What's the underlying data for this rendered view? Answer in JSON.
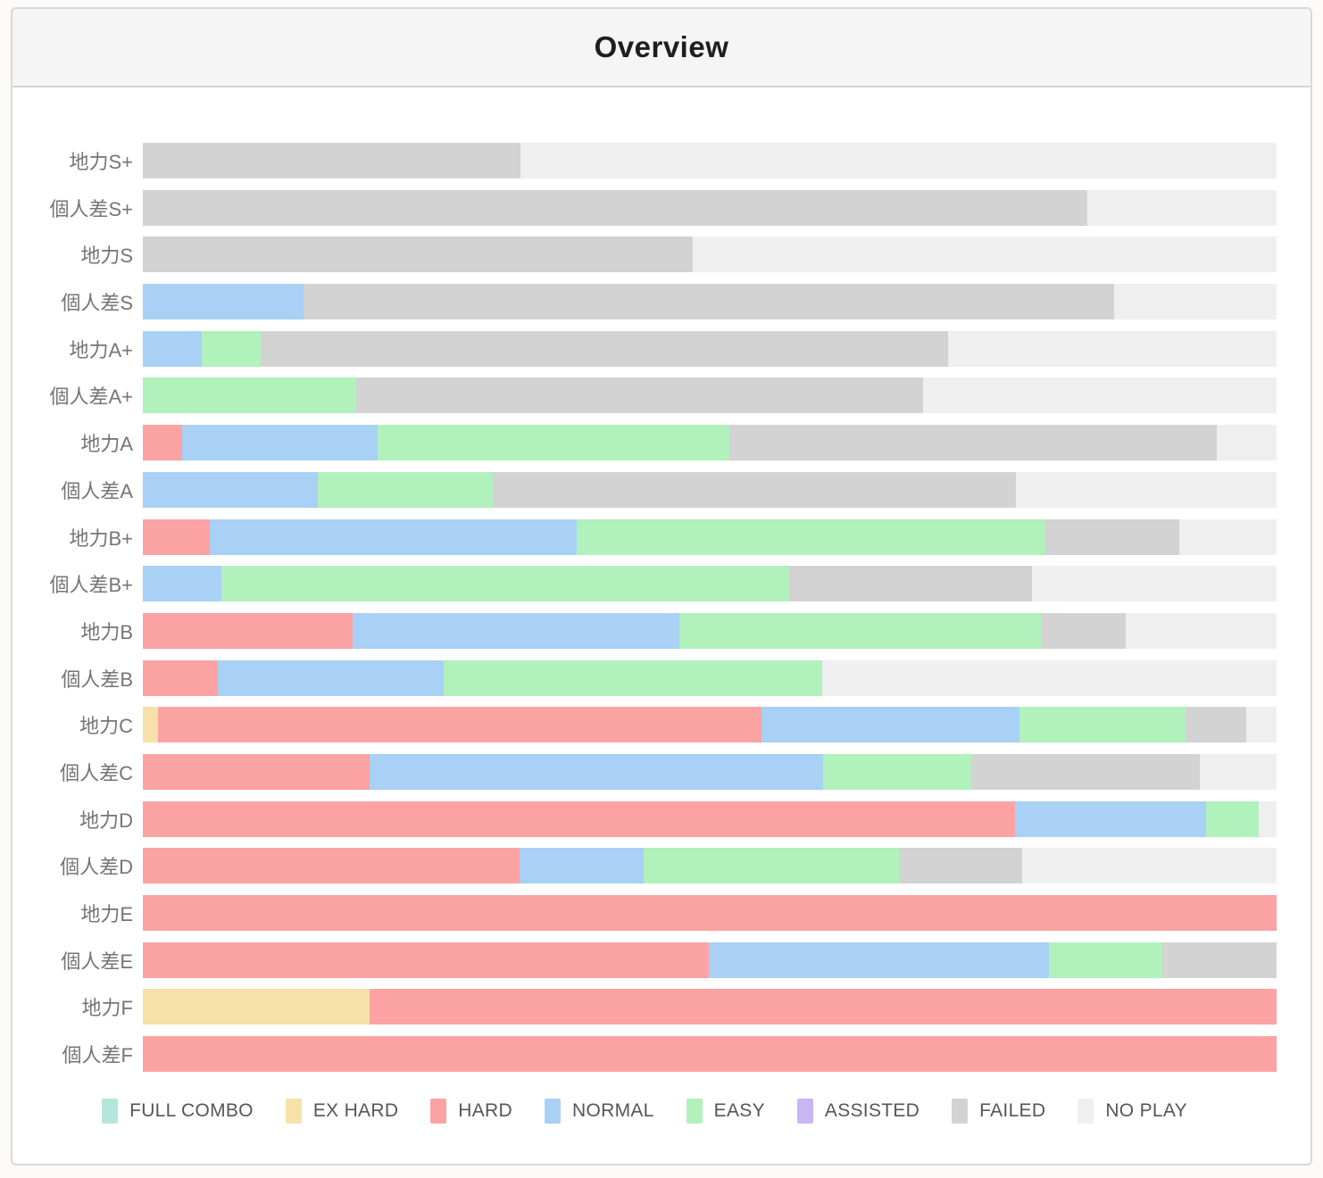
{
  "header": {
    "title": "Overview"
  },
  "colors": {
    "FULL COMBO": "#b6e5de",
    "EX HARD": "#f6e1a8",
    "HARD": "#fba3a3",
    "NORMAL": "#a9d0f5",
    "EASY": "#b1f1bc",
    "ASSISTED": "#c7b6f2",
    "FAILED": "#d3d3d3",
    "NO PLAY": "#efefef"
  },
  "legend": [
    "FULL COMBO",
    "EX HARD",
    "HARD",
    "NORMAL",
    "EASY",
    "ASSISTED",
    "FAILED",
    "NO PLAY"
  ],
  "chart_data": {
    "type": "bar",
    "stacked": true,
    "orientation": "horizontal",
    "title": "Overview",
    "xlabel": "",
    "ylabel": "",
    "value_unit": "percent",
    "x_range": [
      0,
      100
    ],
    "grid": false,
    "legend_position": "bottom",
    "series_order": [
      "FULL COMBO",
      "EX HARD",
      "HARD",
      "NORMAL",
      "EASY",
      "ASSISTED",
      "FAILED",
      "NO PLAY"
    ],
    "categories": [
      "地力S+",
      "個人差S+",
      "地力S",
      "個人差S",
      "地力A+",
      "個人差A+",
      "地力A",
      "個人差A",
      "地力B+",
      "個人差B+",
      "地力B",
      "個人差B",
      "地力C",
      "個人差C",
      "地力D",
      "個人差D",
      "地力E",
      "個人差E",
      "地力F",
      "個人差F"
    ],
    "rows": [
      {
        "label": "地力S+",
        "segments": [
          {
            "key": "FAILED",
            "value": 33.3
          },
          {
            "key": "NO PLAY",
            "value": 66.7
          }
        ]
      },
      {
        "label": "個人差S+",
        "segments": [
          {
            "key": "FAILED",
            "value": 83.3
          },
          {
            "key": "NO PLAY",
            "value": 16.7
          }
        ]
      },
      {
        "label": "地力S",
        "segments": [
          {
            "key": "FAILED",
            "value": 48.5
          },
          {
            "key": "NO PLAY",
            "value": 51.5
          }
        ]
      },
      {
        "label": "個人差S",
        "segments": [
          {
            "key": "NORMAL",
            "value": 14.2
          },
          {
            "key": "FAILED",
            "value": 71.5
          },
          {
            "key": "NO PLAY",
            "value": 14.3
          }
        ]
      },
      {
        "label": "地力A+",
        "segments": [
          {
            "key": "NORMAL",
            "value": 5.2
          },
          {
            "key": "EASY",
            "value": 5.2
          },
          {
            "key": "FAILED",
            "value": 60.6
          },
          {
            "key": "NO PLAY",
            "value": 29.0
          }
        ]
      },
      {
        "label": "個人差A+",
        "segments": [
          {
            "key": "EASY",
            "value": 18.8
          },
          {
            "key": "FAILED",
            "value": 50.0
          },
          {
            "key": "NO PLAY",
            "value": 31.2
          }
        ]
      },
      {
        "label": "地力A",
        "segments": [
          {
            "key": "HARD",
            "value": 3.5
          },
          {
            "key": "NORMAL",
            "value": 17.2
          },
          {
            "key": "EASY",
            "value": 31.0
          },
          {
            "key": "FAILED",
            "value": 43.0
          },
          {
            "key": "NO PLAY",
            "value": 5.3
          }
        ]
      },
      {
        "label": "個人差A",
        "segments": [
          {
            "key": "NORMAL",
            "value": 15.4
          },
          {
            "key": "EASY",
            "value": 15.5
          },
          {
            "key": "FAILED",
            "value": 46.1
          },
          {
            "key": "NO PLAY",
            "value": 23.0
          }
        ]
      },
      {
        "label": "地力B+",
        "segments": [
          {
            "key": "HARD",
            "value": 5.9
          },
          {
            "key": "NORMAL",
            "value": 32.4
          },
          {
            "key": "EASY",
            "value": 41.3
          },
          {
            "key": "FAILED",
            "value": 11.8
          },
          {
            "key": "NO PLAY",
            "value": 8.6
          }
        ]
      },
      {
        "label": "個人差B+",
        "segments": [
          {
            "key": "NORMAL",
            "value": 6.9
          },
          {
            "key": "EASY",
            "value": 50.1
          },
          {
            "key": "FAILED",
            "value": 21.4
          },
          {
            "key": "NO PLAY",
            "value": 21.6
          }
        ]
      },
      {
        "label": "地力B",
        "segments": [
          {
            "key": "HARD",
            "value": 18.5
          },
          {
            "key": "NORMAL",
            "value": 28.8
          },
          {
            "key": "EASY",
            "value": 31.9
          },
          {
            "key": "FAILED",
            "value": 7.5
          },
          {
            "key": "NO PLAY",
            "value": 13.3
          }
        ]
      },
      {
        "label": "個人差B",
        "segments": [
          {
            "key": "HARD",
            "value": 6.6
          },
          {
            "key": "NORMAL",
            "value": 19.9
          },
          {
            "key": "EASY",
            "value": 33.4
          },
          {
            "key": "NO PLAY",
            "value": 40.1
          }
        ]
      },
      {
        "label": "地力C",
        "segments": [
          {
            "key": "EX HARD",
            "value": 1.3
          },
          {
            "key": "HARD",
            "value": 53.3
          },
          {
            "key": "NORMAL",
            "value": 22.7
          },
          {
            "key": "EASY",
            "value": 14.7
          },
          {
            "key": "FAILED",
            "value": 5.3
          },
          {
            "key": "NO PLAY",
            "value": 2.7
          }
        ]
      },
      {
        "label": "個人差C",
        "segments": [
          {
            "key": "HARD",
            "value": 20.0
          },
          {
            "key": "NORMAL",
            "value": 40.0
          },
          {
            "key": "EASY",
            "value": 13.1
          },
          {
            "key": "FAILED",
            "value": 20.1
          },
          {
            "key": "NO PLAY",
            "value": 6.8
          }
        ]
      },
      {
        "label": "地力D",
        "segments": [
          {
            "key": "HARD",
            "value": 76.9
          },
          {
            "key": "NORMAL",
            "value": 16.9
          },
          {
            "key": "EASY",
            "value": 4.6
          },
          {
            "key": "NO PLAY",
            "value": 1.6
          }
        ]
      },
      {
        "label": "個人差D",
        "segments": [
          {
            "key": "HARD",
            "value": 33.2
          },
          {
            "key": "NORMAL",
            "value": 11.0
          },
          {
            "key": "EASY",
            "value": 22.5
          },
          {
            "key": "FAILED",
            "value": 10.9
          },
          {
            "key": "NO PLAY",
            "value": 22.4
          }
        ]
      },
      {
        "label": "地力E",
        "segments": [
          {
            "key": "HARD",
            "value": 100
          }
        ]
      },
      {
        "label": "個人差E",
        "segments": [
          {
            "key": "HARD",
            "value": 49.9
          },
          {
            "key": "NORMAL",
            "value": 30.0
          },
          {
            "key": "EASY",
            "value": 10.0
          },
          {
            "key": "FAILED",
            "value": 10.1
          }
        ]
      },
      {
        "label": "地力F",
        "segments": [
          {
            "key": "EX HARD",
            "value": 20.0
          },
          {
            "key": "HARD",
            "value": 80.0
          }
        ]
      },
      {
        "label": "個人差F",
        "segments": [
          {
            "key": "HARD",
            "value": 100
          }
        ]
      }
    ]
  }
}
